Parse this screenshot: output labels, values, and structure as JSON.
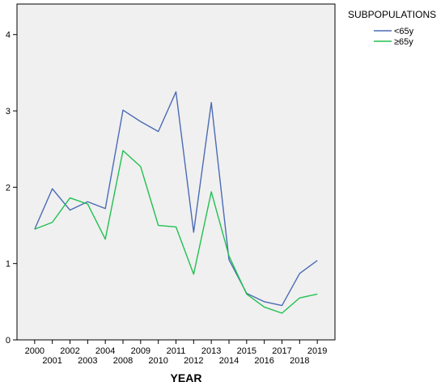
{
  "chart_data": {
    "type": "line",
    "xlabel": "YEAR",
    "ylabel": "",
    "ylim": [
      0,
      4.4
    ],
    "yticks": [
      "0",
      "1",
      "2",
      "3",
      "4"
    ],
    "categories": [
      "2000",
      "2001",
      "2002",
      "2003",
      "2004",
      "2008",
      "2009",
      "2010",
      "2011",
      "2012",
      "2013",
      "2014",
      "2015",
      "2016",
      "2017",
      "2018",
      "2019"
    ],
    "grid": false,
    "background_color": "#f0f0f0",
    "legend": {
      "title": "SUBPOPULATIONS",
      "placement": "right-top"
    },
    "series": [
      {
        "name": "<65y",
        "color": "#4a6bb5",
        "values": [
          1.45,
          1.98,
          1.7,
          1.81,
          1.72,
          3.01,
          2.86,
          2.73,
          3.25,
          1.41,
          3.11,
          1.05,
          0.61,
          0.5,
          0.45,
          0.87,
          1.04
        ]
      },
      {
        "name": "≥65y",
        "color": "#20c050",
        "values": [
          1.45,
          1.54,
          1.86,
          1.78,
          1.32,
          2.48,
          2.27,
          1.5,
          1.48,
          0.86,
          1.94,
          1.1,
          0.6,
          0.43,
          0.35,
          0.55,
          0.6
        ]
      }
    ]
  }
}
